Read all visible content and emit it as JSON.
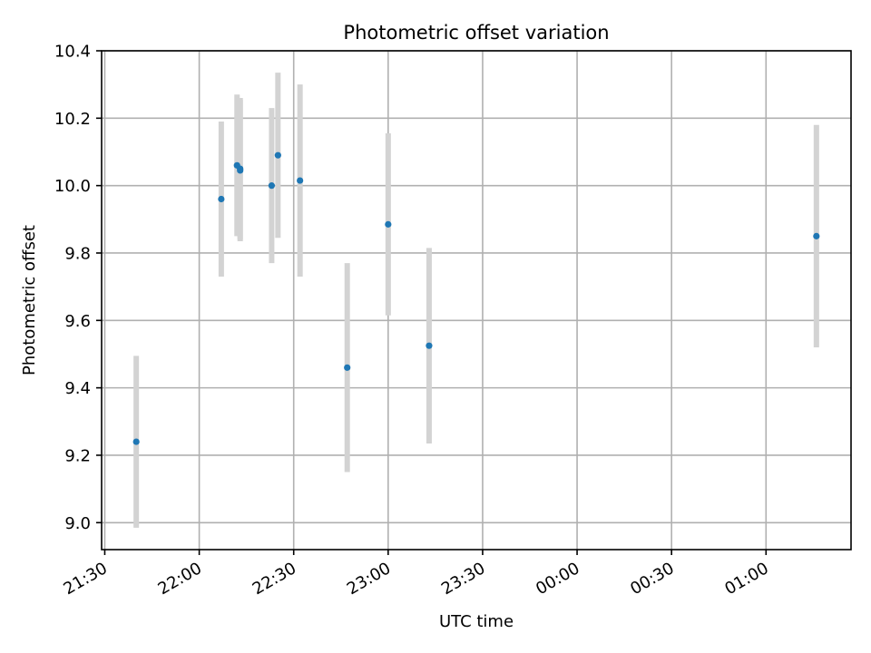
{
  "chart_data": {
    "type": "scatter",
    "title": "Photometric offset variation",
    "xlabel": "UTC time",
    "ylabel": "Photometric offset",
    "x_ticks": [
      "21:30",
      "22:00",
      "22:30",
      "23:00",
      "23:30",
      "00:00",
      "00:30",
      "01:00"
    ],
    "y_ticks": [
      "9.0",
      "9.2",
      "9.4",
      "9.6",
      "9.8",
      "10.0",
      "10.2",
      "10.4"
    ],
    "xlim": [
      "21:29",
      "01:27"
    ],
    "ylim": [
      8.92,
      10.4
    ],
    "grid": true,
    "marker_color": "#1f77b4",
    "errorbar_color": "#d3d3d3",
    "points": [
      {
        "time": "21:40",
        "y": 9.24,
        "yerr": 0.255
      },
      {
        "time": "22:07",
        "y": 9.96,
        "yerr": 0.23
      },
      {
        "time": "22:12",
        "y": 10.06,
        "yerr": 0.21
      },
      {
        "time": "22:13",
        "y": 10.045,
        "yerr": 0.21
      },
      {
        "time": "22:13",
        "y": 10.05,
        "yerr": 0.21
      },
      {
        "time": "22:23",
        "y": 10.0,
        "yerr": 0.23
      },
      {
        "time": "22:25",
        "y": 10.09,
        "yerr": 0.245
      },
      {
        "time": "22:32",
        "y": 10.015,
        "yerr": 0.285
      },
      {
        "time": "22:47",
        "y": 9.46,
        "yerr": 0.31
      },
      {
        "time": "23:00",
        "y": 9.885,
        "yerr": 0.27
      },
      {
        "time": "23:13",
        "y": 9.525,
        "yerr": 0.29
      },
      {
        "time": "01:16",
        "y": 9.85,
        "yerr": 0.33
      }
    ]
  }
}
